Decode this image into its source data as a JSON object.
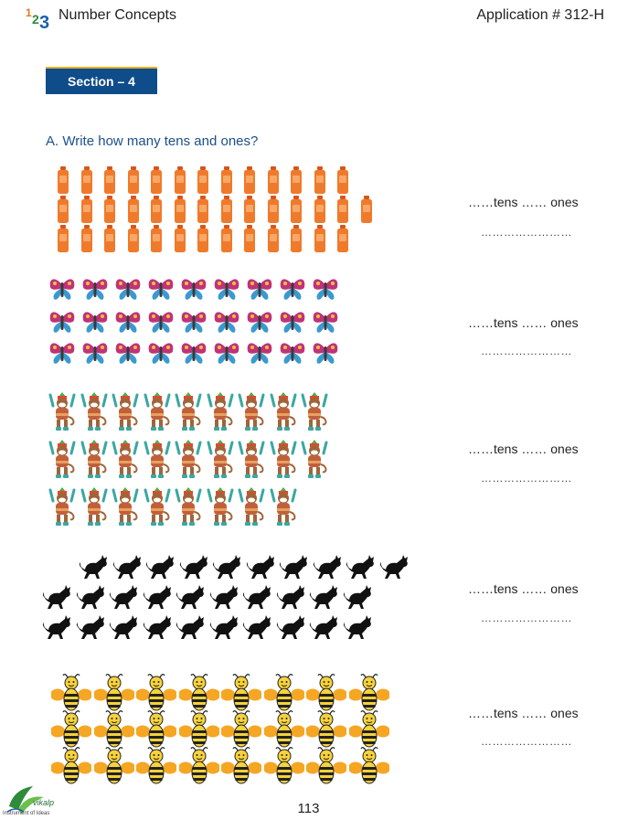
{
  "header": {
    "logo_digits": [
      "1",
      "2",
      "3"
    ],
    "title": "Number Concepts",
    "application": "Application # 312-H"
  },
  "section": {
    "label": "Section – 4"
  },
  "instruction": "A. Write how many tens and ones?",
  "groups": [
    {
      "object": "bottle",
      "rows": [
        13,
        14,
        13
      ]
    },
    {
      "object": "butterfly",
      "rows": [
        9,
        9,
        9
      ]
    },
    {
      "object": "monkey",
      "rows": [
        9,
        9,
        8
      ]
    },
    {
      "object": "cat",
      "rows": [
        10,
        10,
        10
      ]
    },
    {
      "object": "bee",
      "rows": [
        8,
        8,
        8
      ]
    }
  ],
  "answers": [
    {
      "text": "……tens …… ones",
      "blank": "……………………"
    },
    {
      "text": "……tens …… ones",
      "blank": "……………………"
    },
    {
      "text": "……tens …… ones",
      "blank": "……………………"
    },
    {
      "text": "……tens …… ones",
      "blank": "……………………"
    },
    {
      "text": "……tens …… ones",
      "blank": "……………………"
    }
  ],
  "footer": {
    "page_number": "113",
    "brand": "vikalp",
    "tagline": "Instrument of Ideas"
  },
  "colors": {
    "section_bg": "#0f4c8a",
    "section_accent": "#f0b020",
    "instruction": "#1b4f8a"
  }
}
